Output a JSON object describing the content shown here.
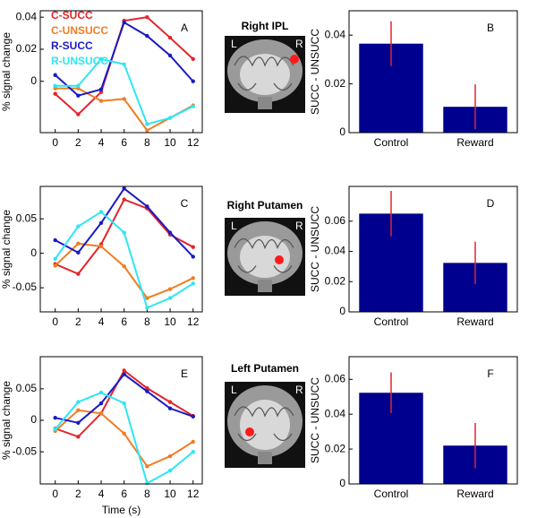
{
  "chart_data": [
    {
      "type": "line",
      "panel_label": "A",
      "ylabel": "% signal change",
      "x": [
        0,
        2,
        4,
        6,
        8,
        10,
        12
      ],
      "xlim": [
        -1.3,
        12.8
      ],
      "xticks": [
        0,
        2,
        4,
        6,
        8,
        10,
        12
      ],
      "ylim": [
        -0.032,
        0.044
      ],
      "yticks": [
        0,
        0.02,
        0.04
      ],
      "legend": "upper left",
      "series": [
        {
          "name": "C-SUCC",
          "color": "#e3242b",
          "values": [
            -0.0078,
            -0.0206,
            -0.0067,
            0.0378,
            0.04,
            0.0272,
            0.0139
          ]
        },
        {
          "name": "C-UNSUCC",
          "color": "#f07d24",
          "values": [
            -0.0044,
            -0.0044,
            -0.0122,
            -0.011,
            -0.0306,
            -0.0228,
            -0.015
          ]
        },
        {
          "name": "R-SUCC",
          "color": "#1a1ac4",
          "values": [
            0.0039,
            -0.0089,
            -0.005,
            0.0367,
            0.0283,
            0.0161,
            0
          ]
        },
        {
          "name": "R-UNSUCC",
          "color": "#2ee6f2",
          "values": [
            -0.0028,
            -0.0028,
            0.0139,
            0.0106,
            -0.0267,
            -0.0228,
            -0.0156
          ]
        }
      ]
    },
    {
      "type": "bar",
      "panel_label": "B",
      "ylabel": "SUCC - UNSUCC",
      "categories": [
        "Control",
        "Reward"
      ],
      "values": [
        0.0365,
        0.0106
      ],
      "errors": [
        0.0092,
        0.0092
      ],
      "color": "#00008f",
      "error_color": "#e3242b",
      "ylim": [
        0,
        0.05
      ],
      "yticks": [
        0,
        0.02,
        0.04
      ]
    },
    {
      "type": "line",
      "panel_label": "C",
      "ylabel": "% signal change",
      "x": [
        0,
        2,
        4,
        6,
        8,
        10,
        12
      ],
      "xlim": [
        -1.3,
        12.8
      ],
      "xticks": [
        0,
        2,
        4,
        6,
        8,
        10,
        12
      ],
      "ylim": [
        -0.085,
        0.097
      ],
      "yticks": [
        -0.05,
        0,
        0.05
      ],
      "series": [
        {
          "color": "#e3242b",
          "values": [
            -0.0156,
            -0.0299,
            0.013,
            0.078,
            0.065,
            0.027,
            0.009
          ]
        },
        {
          "color": "#f07d24",
          "values": [
            -0.018,
            0.014,
            0.01,
            -0.019,
            -0.065,
            -0.052,
            -0.036
          ]
        },
        {
          "color": "#1a1ac4",
          "values": [
            0.019,
            0.001,
            0.044,
            0.094,
            0.068,
            0.03,
            -0.005
          ]
        },
        {
          "color": "#2ee6f2",
          "values": [
            -0.008,
            0.039,
            0.06,
            0.03,
            -0.079,
            -0.065,
            -0.044
          ]
        }
      ]
    },
    {
      "type": "bar",
      "panel_label": "D",
      "ylabel": "SUCC - UNSUCC",
      "categories": [
        "Control",
        "Reward"
      ],
      "values": [
        0.065,
        0.0324
      ],
      "errors": [
        0.015,
        0.014
      ],
      "color": "#00008f",
      "error_color": "#e3242b",
      "ylim": [
        0,
        0.083
      ],
      "yticks": [
        0,
        0.02,
        0.04,
        0.06
      ]
    },
    {
      "type": "line",
      "panel_label": "E",
      "ylabel": "% signal change",
      "xlabel": "Time (s)",
      "x": [
        0,
        2,
        4,
        6,
        8,
        10,
        12
      ],
      "xlim": [
        -1.3,
        12.8
      ],
      "xticks": [
        0,
        2,
        4,
        6,
        8,
        10,
        12
      ],
      "ylim": [
        -0.101,
        0.101
      ],
      "yticks": [
        -0.05,
        0,
        0.05
      ],
      "series": [
        {
          "color": "#e3242b",
          "values": [
            -0.013,
            -0.026,
            0.011,
            0.079,
            0.051,
            0.029,
            0.007
          ]
        },
        {
          "color": "#f07d24",
          "values": [
            -0.017,
            0.016,
            0.011,
            -0.021,
            -0.073,
            -0.057,
            -0.034
          ]
        },
        {
          "color": "#1a1ac4",
          "values": [
            0.004,
            -0.004,
            0.027,
            0.073,
            0.046,
            0.019,
            0.006
          ]
        },
        {
          "color": "#2ee6f2",
          "values": [
            -0.014,
            0.029,
            0.044,
            0.027,
            -0.1,
            -0.08,
            -0.05
          ]
        }
      ]
    },
    {
      "type": "bar",
      "panel_label": "F",
      "ylabel": "SUCC - UNSUCC",
      "categories": [
        "Control",
        "Reward"
      ],
      "values": [
        0.0523,
        0.022
      ],
      "errors": [
        0.0117,
        0.013
      ],
      "color": "#00008f",
      "error_color": "#e3242b",
      "ylim": [
        0,
        0.073
      ],
      "yticks": [
        0,
        0.02,
        0.04,
        0.06
      ]
    }
  ],
  "brain_images": [
    {
      "title": "Right IPL",
      "left_label": "L",
      "right_label": "R"
    },
    {
      "title": "Right Putamen",
      "left_label": "L",
      "right_label": "R"
    },
    {
      "title": "Left Putamen",
      "left_label": "L",
      "right_label": "R"
    }
  ]
}
